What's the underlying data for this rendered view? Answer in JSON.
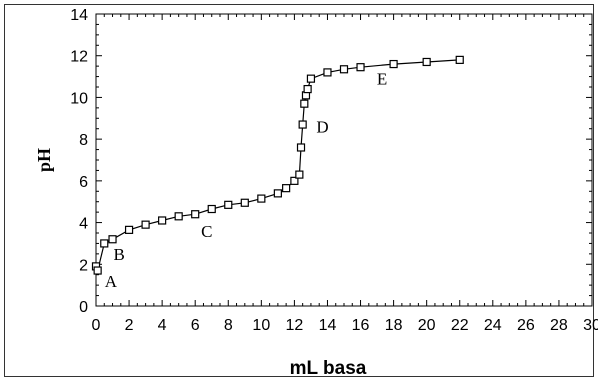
{
  "chart_data": {
    "type": "scatter",
    "title": "",
    "xlabel": "mL basa",
    "ylabel": "pH",
    "xlim": [
      0,
      30
    ],
    "ylim": [
      0,
      14
    ],
    "x_ticks": [
      0,
      2,
      4,
      6,
      8,
      10,
      12,
      14,
      16,
      18,
      20,
      22,
      24,
      26,
      28,
      30
    ],
    "y_ticks": [
      0,
      2,
      4,
      6,
      8,
      10,
      12,
      14
    ],
    "grid": false,
    "marker": "open-square",
    "line": "connected",
    "series": [
      {
        "x": [
          0,
          0.1,
          0.5,
          1,
          2,
          3,
          4,
          5,
          6,
          7,
          8,
          9,
          10,
          11,
          11.5,
          12,
          12.3,
          12.4,
          12.5,
          12.6,
          12.7,
          12.8,
          13,
          14,
          15,
          16,
          18,
          20,
          22
        ],
        "y": [
          1.9,
          1.7,
          3.0,
          3.2,
          3.65,
          3.9,
          4.1,
          4.3,
          4.4,
          4.65,
          4.85,
          4.95,
          5.15,
          5.4,
          5.65,
          6.0,
          6.3,
          7.6,
          8.7,
          9.7,
          10.1,
          10.4,
          10.9,
          11.2,
          11.35,
          11.45,
          11.6,
          11.7,
          11.8
        ]
      }
    ],
    "annotations": [
      {
        "text": "A",
        "x": 0.9,
        "y": 1.2
      },
      {
        "text": "B",
        "x": 1.4,
        "y": 2.5
      },
      {
        "text": "C",
        "x": 6.7,
        "y": 3.6
      },
      {
        "text": "D",
        "x": 13.7,
        "y": 8.6
      },
      {
        "text": "E",
        "x": 17.3,
        "y": 10.9
      }
    ]
  }
}
